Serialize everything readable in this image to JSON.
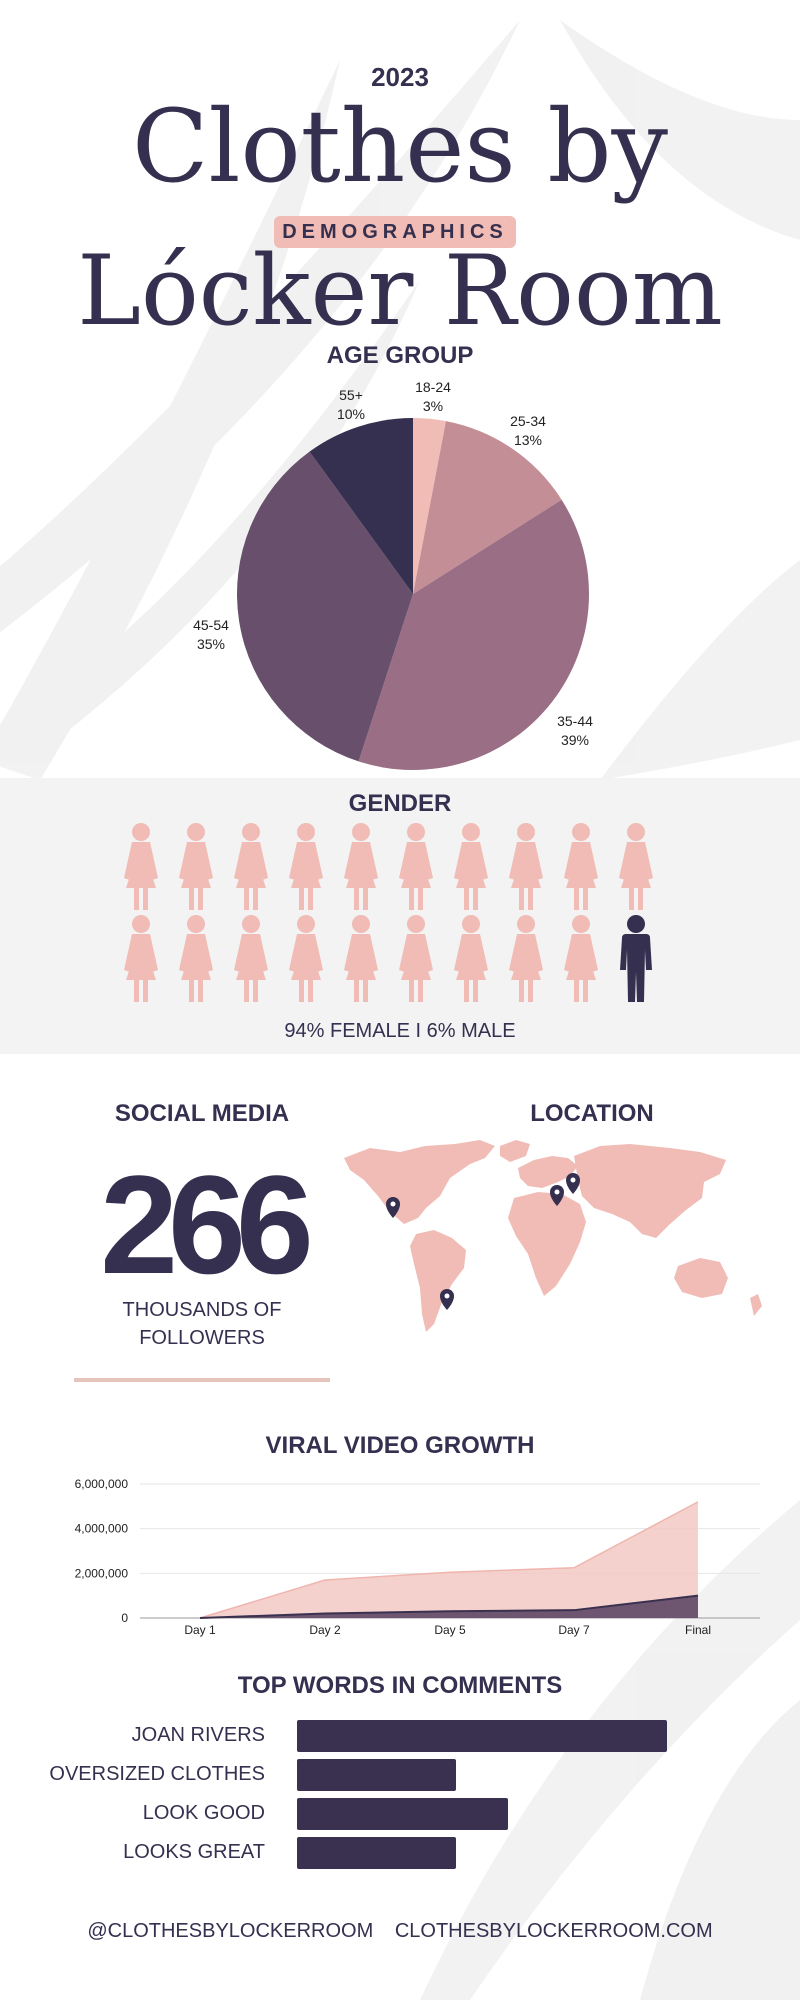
{
  "header": {
    "year": "2023",
    "title_line1": "Clothes by",
    "badge": "DEMOGRAPHICS",
    "title_line2": "Lócker Room"
  },
  "colors": {
    "dark": "#35304f",
    "pink": "#f0bcb5",
    "pink_mid": "#c48e97",
    "mauve": "#9a6e85",
    "plum": "#684f6b",
    "gray_band": "#f3f3f3"
  },
  "age_group": {
    "title": "AGE GROUP",
    "slices": [
      {
        "label": "18-24",
        "pct_text": "3%",
        "value": 3
      },
      {
        "label": "25-34",
        "pct_text": "13%",
        "value": 13
      },
      {
        "label": "35-44",
        "pct_text": "39%",
        "value": 39
      },
      {
        "label": "45-54",
        "pct_text": "35%",
        "value": 35
      },
      {
        "label": "55+",
        "pct_text": "10%",
        "value": 10
      }
    ]
  },
  "gender": {
    "title": "GENDER",
    "female_icons": 19,
    "male_icons": 1,
    "caption": "94% FEMALE  I  6% MALE"
  },
  "social_media": {
    "title": "SOCIAL MEDIA",
    "followers_number": "266",
    "followers_text_line1": "THOUSANDS OF",
    "followers_text_line2": "FOLLOWERS"
  },
  "location": {
    "title": "LOCATION",
    "pins": [
      "North America",
      "Europe (west)",
      "Europe (east)",
      "South America"
    ]
  },
  "viral_video": {
    "title": "VIRAL VIDEO GROWTH",
    "y_ticks": [
      "6,000,000",
      "4,000,000",
      "2,000,000",
      "0"
    ]
  },
  "chart_data": {
    "type": "area",
    "categories": [
      "Day 1",
      "Day 2",
      "Day 5",
      "Day 7",
      "Final"
    ],
    "series": [
      {
        "values": [
          0,
          1700000,
          2050000,
          2250000,
          5200000
        ]
      },
      {
        "values": [
          0,
          200000,
          300000,
          350000,
          1000000
        ]
      }
    ],
    "ylim": [
      0,
      6000000
    ],
    "grid": true
  },
  "top_words": {
    "title": "TOP WORDS IN COMMENTS",
    "items": [
      {
        "label": "JOAN RIVERS",
        "value": 100
      },
      {
        "label": "OVERSIZED CLOTHES",
        "value": 43
      },
      {
        "label": "LOOK GOOD",
        "value": 57
      },
      {
        "label": "LOOKS GREAT",
        "value": 43
      }
    ]
  },
  "footer": {
    "handle": "@CLOTHESBYLOCKERROOM",
    "website": "CLOTHESBYLOCKERROOM.COM"
  }
}
